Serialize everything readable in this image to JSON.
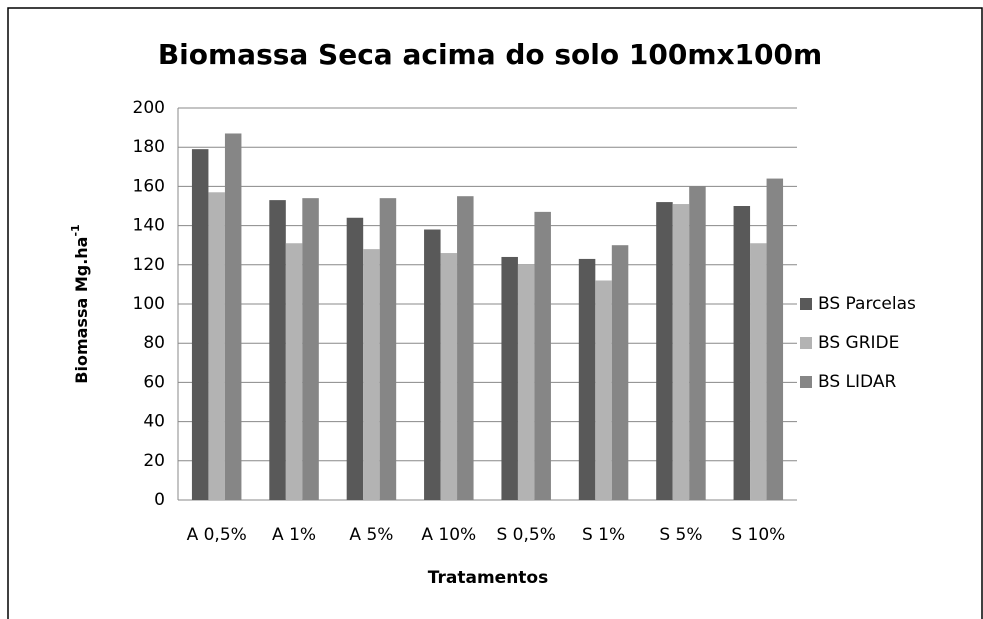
{
  "chart_data": {
    "type": "bar",
    "title": "Biomassa Seca acima do solo 100mx100m",
    "x_label": "Tratamentos",
    "y_label": "Biomassa Mg.ha",
    "y_label_superscript": "-1",
    "categories": [
      "A 0,5%",
      "A 1%",
      "A 5%",
      "A 10%",
      "S 0,5%",
      "S 1%",
      "S 5%",
      "S 10%"
    ],
    "series": [
      {
        "name": "BS Parcelas",
        "color": "#595959",
        "values": [
          179,
          153,
          144,
          138,
          124,
          123,
          152,
          150
        ]
      },
      {
        "name": "BS GRIDE",
        "color": "#b3b3b3",
        "values": [
          157,
          131,
          128,
          126,
          120,
          112,
          151,
          131
        ]
      },
      {
        "name": "BS LIDAR",
        "color": "#868686",
        "values": [
          187,
          154,
          154,
          155,
          147,
          130,
          160,
          164
        ]
      }
    ],
    "ylim": [
      0,
      200
    ],
    "yticks": [
      0,
      20,
      40,
      60,
      80,
      100,
      120,
      140,
      160,
      180,
      200
    ],
    "grid": true,
    "legend": "right"
  }
}
